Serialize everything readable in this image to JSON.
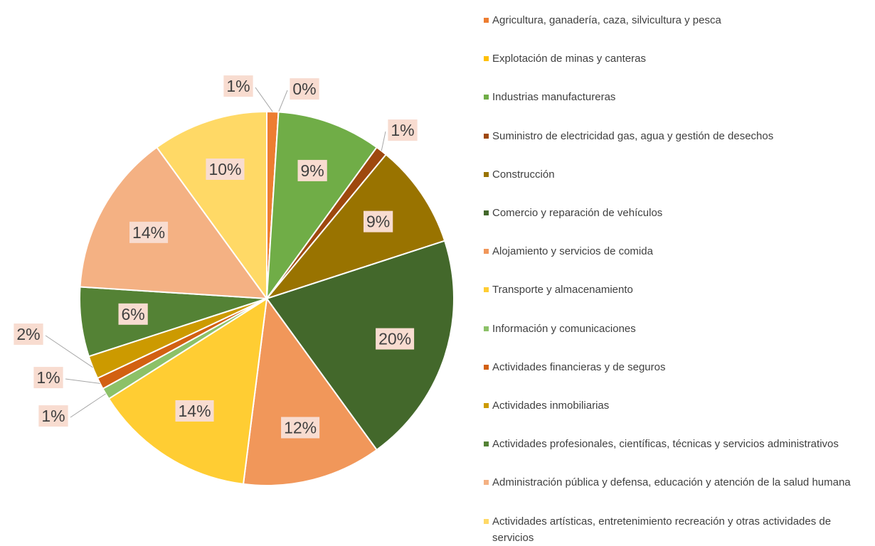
{
  "chart_data": {
    "type": "pie",
    "categories": [
      "Agricultura, ganadería, caza, silvicultura y pesca",
      "Explotación de minas y canteras",
      "Industrias manufactureras",
      "Suministro de electricidad gas, agua y gestión de desechos",
      "Construcción",
      "Comercio y reparación de vehículos",
      "Alojamiento y servicios de comida",
      "Transporte y almacenamiento",
      "Información y comunicaciones",
      "Actividades financieras y de seguros",
      "Actividades inmobiliarias",
      "Actividades profesionales, científicas, técnicas y servicios administrativos",
      "Administración pública y defensa, educación y atención de la salud humana",
      "Actividades artísticas, entretenimiento recreación y otras actividades de servicios"
    ],
    "values": [
      1,
      0,
      9,
      1,
      9,
      20,
      12,
      14,
      1,
      1,
      2,
      6,
      14,
      10
    ],
    "value_labels": [
      "1%",
      "0%",
      "9%",
      "1%",
      "9%",
      "20%",
      "12%",
      "14%",
      "1%",
      "1%",
      "2%",
      "6%",
      "14%",
      "10%"
    ],
    "colors": [
      "#ed7d31",
      "#ffc000",
      "#70ad47",
      "#9e480e",
      "#997300",
      "#43682b",
      "#f1975a",
      "#ffcd33",
      "#8cc168",
      "#d26012",
      "#cc9a00",
      "#548235",
      "#f4b183",
      "#ffd966"
    ],
    "legend": "right"
  }
}
